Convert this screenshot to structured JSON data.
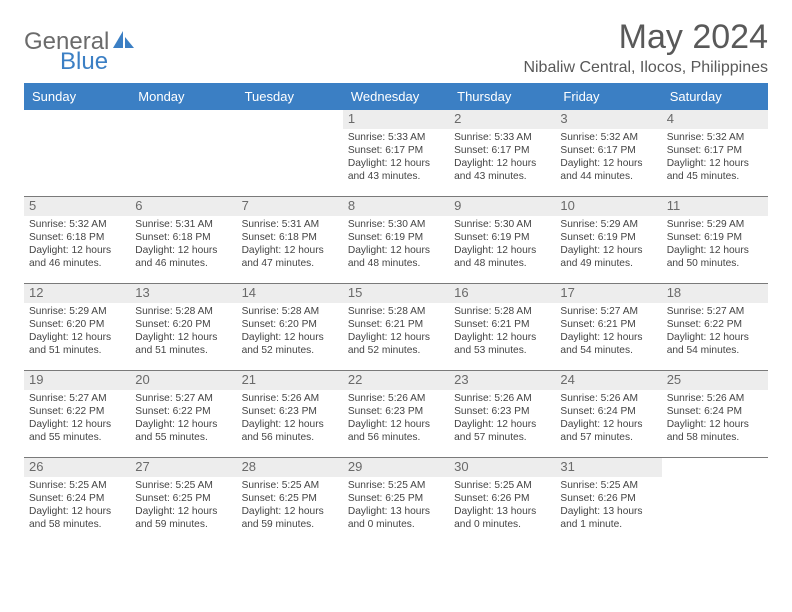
{
  "logo": {
    "textGray": "General",
    "textBlue": "Blue"
  },
  "title": "May 2024",
  "location": "Nibaliw Central, Ilocos, Philippines",
  "colors": {
    "headerBg": "#3b7fc4",
    "headerText": "#ffffff",
    "dayNumBg": "#ededed",
    "rowBorder": "#7a7a7a",
    "bodyText": "#444444",
    "titleText": "#595959"
  },
  "weekdays": [
    "Sunday",
    "Monday",
    "Tuesday",
    "Wednesday",
    "Thursday",
    "Friday",
    "Saturday"
  ],
  "weeks": [
    [
      {
        "empty": true
      },
      {
        "empty": true
      },
      {
        "empty": true
      },
      {
        "day": "1",
        "sunrise": "Sunrise: 5:33 AM",
        "sunset": "Sunset: 6:17 PM",
        "daylight": "Daylight: 12 hours and 43 minutes."
      },
      {
        "day": "2",
        "sunrise": "Sunrise: 5:33 AM",
        "sunset": "Sunset: 6:17 PM",
        "daylight": "Daylight: 12 hours and 43 minutes."
      },
      {
        "day": "3",
        "sunrise": "Sunrise: 5:32 AM",
        "sunset": "Sunset: 6:17 PM",
        "daylight": "Daylight: 12 hours and 44 minutes."
      },
      {
        "day": "4",
        "sunrise": "Sunrise: 5:32 AM",
        "sunset": "Sunset: 6:17 PM",
        "daylight": "Daylight: 12 hours and 45 minutes."
      }
    ],
    [
      {
        "day": "5",
        "sunrise": "Sunrise: 5:32 AM",
        "sunset": "Sunset: 6:18 PM",
        "daylight": "Daylight: 12 hours and 46 minutes."
      },
      {
        "day": "6",
        "sunrise": "Sunrise: 5:31 AM",
        "sunset": "Sunset: 6:18 PM",
        "daylight": "Daylight: 12 hours and 46 minutes."
      },
      {
        "day": "7",
        "sunrise": "Sunrise: 5:31 AM",
        "sunset": "Sunset: 6:18 PM",
        "daylight": "Daylight: 12 hours and 47 minutes."
      },
      {
        "day": "8",
        "sunrise": "Sunrise: 5:30 AM",
        "sunset": "Sunset: 6:19 PM",
        "daylight": "Daylight: 12 hours and 48 minutes."
      },
      {
        "day": "9",
        "sunrise": "Sunrise: 5:30 AM",
        "sunset": "Sunset: 6:19 PM",
        "daylight": "Daylight: 12 hours and 48 minutes."
      },
      {
        "day": "10",
        "sunrise": "Sunrise: 5:29 AM",
        "sunset": "Sunset: 6:19 PM",
        "daylight": "Daylight: 12 hours and 49 minutes."
      },
      {
        "day": "11",
        "sunrise": "Sunrise: 5:29 AM",
        "sunset": "Sunset: 6:19 PM",
        "daylight": "Daylight: 12 hours and 50 minutes."
      }
    ],
    [
      {
        "day": "12",
        "sunrise": "Sunrise: 5:29 AM",
        "sunset": "Sunset: 6:20 PM",
        "daylight": "Daylight: 12 hours and 51 minutes."
      },
      {
        "day": "13",
        "sunrise": "Sunrise: 5:28 AM",
        "sunset": "Sunset: 6:20 PM",
        "daylight": "Daylight: 12 hours and 51 minutes."
      },
      {
        "day": "14",
        "sunrise": "Sunrise: 5:28 AM",
        "sunset": "Sunset: 6:20 PM",
        "daylight": "Daylight: 12 hours and 52 minutes."
      },
      {
        "day": "15",
        "sunrise": "Sunrise: 5:28 AM",
        "sunset": "Sunset: 6:21 PM",
        "daylight": "Daylight: 12 hours and 52 minutes."
      },
      {
        "day": "16",
        "sunrise": "Sunrise: 5:28 AM",
        "sunset": "Sunset: 6:21 PM",
        "daylight": "Daylight: 12 hours and 53 minutes."
      },
      {
        "day": "17",
        "sunrise": "Sunrise: 5:27 AM",
        "sunset": "Sunset: 6:21 PM",
        "daylight": "Daylight: 12 hours and 54 minutes."
      },
      {
        "day": "18",
        "sunrise": "Sunrise: 5:27 AM",
        "sunset": "Sunset: 6:22 PM",
        "daylight": "Daylight: 12 hours and 54 minutes."
      }
    ],
    [
      {
        "day": "19",
        "sunrise": "Sunrise: 5:27 AM",
        "sunset": "Sunset: 6:22 PM",
        "daylight": "Daylight: 12 hours and 55 minutes."
      },
      {
        "day": "20",
        "sunrise": "Sunrise: 5:27 AM",
        "sunset": "Sunset: 6:22 PM",
        "daylight": "Daylight: 12 hours and 55 minutes."
      },
      {
        "day": "21",
        "sunrise": "Sunrise: 5:26 AM",
        "sunset": "Sunset: 6:23 PM",
        "daylight": "Daylight: 12 hours and 56 minutes."
      },
      {
        "day": "22",
        "sunrise": "Sunrise: 5:26 AM",
        "sunset": "Sunset: 6:23 PM",
        "daylight": "Daylight: 12 hours and 56 minutes."
      },
      {
        "day": "23",
        "sunrise": "Sunrise: 5:26 AM",
        "sunset": "Sunset: 6:23 PM",
        "daylight": "Daylight: 12 hours and 57 minutes."
      },
      {
        "day": "24",
        "sunrise": "Sunrise: 5:26 AM",
        "sunset": "Sunset: 6:24 PM",
        "daylight": "Daylight: 12 hours and 57 minutes."
      },
      {
        "day": "25",
        "sunrise": "Sunrise: 5:26 AM",
        "sunset": "Sunset: 6:24 PM",
        "daylight": "Daylight: 12 hours and 58 minutes."
      }
    ],
    [
      {
        "day": "26",
        "sunrise": "Sunrise: 5:25 AM",
        "sunset": "Sunset: 6:24 PM",
        "daylight": "Daylight: 12 hours and 58 minutes."
      },
      {
        "day": "27",
        "sunrise": "Sunrise: 5:25 AM",
        "sunset": "Sunset: 6:25 PM",
        "daylight": "Daylight: 12 hours and 59 minutes."
      },
      {
        "day": "28",
        "sunrise": "Sunrise: 5:25 AM",
        "sunset": "Sunset: 6:25 PM",
        "daylight": "Daylight: 12 hours and 59 minutes."
      },
      {
        "day": "29",
        "sunrise": "Sunrise: 5:25 AM",
        "sunset": "Sunset: 6:25 PM",
        "daylight": "Daylight: 13 hours and 0 minutes."
      },
      {
        "day": "30",
        "sunrise": "Sunrise: 5:25 AM",
        "sunset": "Sunset: 6:26 PM",
        "daylight": "Daylight: 13 hours and 0 minutes."
      },
      {
        "day": "31",
        "sunrise": "Sunrise: 5:25 AM",
        "sunset": "Sunset: 6:26 PM",
        "daylight": "Daylight: 13 hours and 1 minute."
      },
      {
        "empty": true
      }
    ]
  ]
}
